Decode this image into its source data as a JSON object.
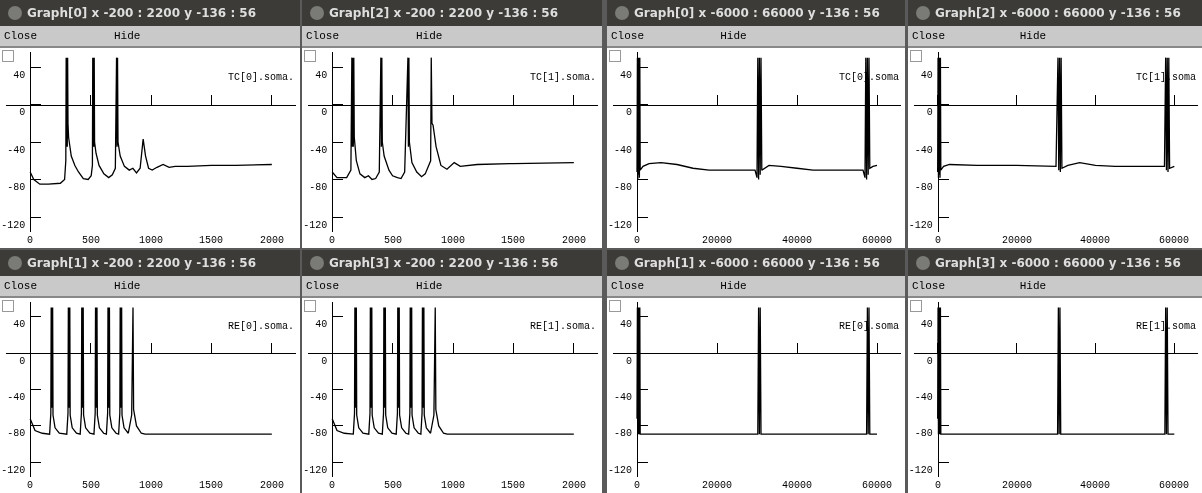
{
  "chart_data": [
    {
      "type": "line",
      "title": "Graph[0]  x -200 : 2200  y -136 : 56",
      "annotations": [
        "Close",
        "Hide"
      ],
      "xlim": [
        -200,
        2200
      ],
      "ylim": [
        -136,
        56
      ],
      "xticks": [
        0,
        500,
        1000,
        1500,
        2000
      ],
      "yticks": [
        -120,
        -80,
        -40,
        0,
        40
      ],
      "series": [
        {
          "name": "TC[0].soma.",
          "color": "#000000",
          "x": [
            0,
            30,
            80,
            150,
            250,
            285,
            295,
            298,
            301,
            304,
            307,
            310,
            313,
            318,
            340,
            370,
            400,
            440,
            480,
            505,
            515,
            518,
            521,
            524,
            527,
            530,
            533,
            545,
            570,
            610,
            650,
            680,
            705,
            715,
            719,
            723,
            727,
            745,
            780,
            820,
            850,
            880,
            910,
            935,
            955,
            980,
            1010,
            1050,
            1100,
            1150,
            1200,
            1300,
            1500,
            1700,
            2000
          ],
          "values": [
            -72,
            -80,
            -85,
            -85,
            -84,
            -80,
            -60,
            50,
            -45,
            50,
            -45,
            50,
            -20,
            -35,
            -55,
            -65,
            -72,
            -79,
            -80,
            -76,
            -65,
            50,
            -45,
            50,
            -45,
            50,
            -40,
            -52,
            -65,
            -74,
            -78,
            -75,
            -68,
            50,
            -45,
            50,
            -40,
            -55,
            -66,
            -70,
            -68,
            -73,
            -68,
            -37,
            -55,
            -68,
            -70,
            -67,
            -64,
            -67,
            -66,
            -66,
            -65,
            -65,
            -64
          ]
        }
      ]
    },
    {
      "type": "line",
      "title": "Graph[2]  x -200 : 2200  y -136 : 56",
      "annotations": [
        "Close",
        "Hide"
      ],
      "xlim": [
        -200,
        2200
      ],
      "ylim": [
        -136,
        56
      ],
      "xticks": [
        0,
        500,
        1000,
        1500,
        2000
      ],
      "yticks": [
        -120,
        -80,
        -40,
        0,
        40
      ],
      "series": [
        {
          "name": "TC[1].soma.",
          "color": "#000000",
          "x": [
            0,
            40,
            120,
            155,
            163,
            167,
            171,
            175,
            179,
            183,
            200,
            230,
            270,
            300,
            330,
            360,
            390,
            403,
            407,
            411,
            415,
            430,
            470,
            500,
            540,
            570,
            600,
            627,
            631,
            635,
            639,
            660,
            700,
            740,
            770,
            815,
            820,
            826,
            835,
            860,
            900,
            950,
            1010,
            1060,
            1200,
            1500,
            2000
          ],
          "values": [
            -72,
            -78,
            -78,
            -70,
            50,
            -45,
            50,
            -45,
            50,
            -35,
            -60,
            -74,
            -78,
            -76,
            -80,
            -79,
            -72,
            50,
            -45,
            50,
            -40,
            -55,
            -70,
            -76,
            -78,
            -79,
            -72,
            50,
            -45,
            50,
            -40,
            -62,
            -72,
            -77,
            -74,
            -60,
            50,
            -20,
            -22,
            -45,
            -65,
            -69,
            -62,
            -66,
            -64,
            -63,
            -62
          ]
        }
      ]
    },
    {
      "type": "line",
      "title": "Graph[0]  x -6000 : 66000  y -136 : 56",
      "annotations": [
        "Close",
        "Hide"
      ],
      "xlim": [
        -6000,
        66000
      ],
      "ylim": [
        -136,
        56
      ],
      "xticks": [
        0,
        20000,
        40000,
        60000
      ],
      "yticks": [
        -120,
        -80,
        -40,
        0,
        40
      ],
      "series": [
        {
          "name": "TC[0].soma",
          "color": "#000000",
          "x": [
            0,
            100,
            200,
            300,
            400,
            500,
            600,
            700,
            800,
            1500,
            3000,
            6000,
            10000,
            14000,
            18000,
            25000,
            29500,
            30000,
            30200,
            30400,
            30600,
            30800,
            31000,
            31200,
            33000,
            36000,
            40000,
            44000,
            50000,
            56500,
            57000,
            57200,
            57400,
            57600,
            57800,
            58000,
            58200,
            59000,
            60000
          ],
          "values": [
            -72,
            50,
            -80,
            50,
            -75,
            50,
            -78,
            50,
            -70,
            -66,
            -63,
            -62,
            -64,
            -68,
            -70,
            -70,
            -70,
            -78,
            50,
            -80,
            50,
            -75,
            50,
            -70,
            -65,
            -66,
            -68,
            -70,
            -70,
            -70,
            -78,
            50,
            -80,
            50,
            -75,
            50,
            -68,
            -66,
            -65
          ]
        }
      ]
    },
    {
      "type": "line",
      "title": "Graph[2]  x -6000 : 66000  y -136 : 56",
      "annotations": [
        "Close",
        "Hide"
      ],
      "xlim": [
        -6000,
        66000
      ],
      "ylim": [
        -136,
        56
      ],
      "xticks": [
        0,
        20000,
        40000,
        60000
      ],
      "yticks": [
        -120,
        -80,
        -40,
        0,
        40
      ],
      "series": [
        {
          "name": "TC[1].soma",
          "color": "#000000",
          "x": [
            0,
            100,
            200,
            300,
            400,
            500,
            600,
            700,
            800,
            1500,
            3000,
            10000,
            20000,
            30000,
            30500,
            30700,
            30900,
            31100,
            31300,
            31500,
            33000,
            36000,
            40000,
            45000,
            52000,
            57500,
            57800,
            58000,
            58200,
            58400,
            58600,
            58800,
            60000
          ],
          "values": [
            -72,
            50,
            -78,
            50,
            -75,
            50,
            -78,
            50,
            -70,
            -66,
            -64,
            -65,
            -65,
            -66,
            50,
            -70,
            50,
            -72,
            50,
            -68,
            -65,
            -62,
            -65,
            -66,
            -66,
            -66,
            50,
            -70,
            50,
            -72,
            50,
            -68,
            -66
          ]
        }
      ]
    },
    {
      "type": "line",
      "title": "Graph[1]  x -200 : 2200  y -136 : 56",
      "annotations": [
        "Close",
        "Hide"
      ],
      "xlim": [
        -200,
        2200
      ],
      "ylim": [
        -136,
        56
      ],
      "xticks": [
        0,
        500,
        1000,
        1500,
        2000
      ],
      "yticks": [
        -120,
        -80,
        -40,
        0,
        40
      ],
      "series": [
        {
          "name": "RE[0].soma.",
          "color": "#000000",
          "x": [
            0,
            40,
            100,
            161,
            171,
            174,
            177,
            180,
            183,
            186,
            189,
            206,
            241,
            303,
            313,
            316,
            319,
            322,
            325,
            328,
            331,
            348,
            383,
            414,
            424,
            427,
            430,
            433,
            436,
            439,
            442,
            459,
            494,
            528,
            538,
            541,
            544,
            547,
            550,
            553,
            556,
            573,
            608,
            631,
            641,
            644,
            647,
            650,
            653,
            656,
            659,
            676,
            711,
            732,
            742,
            745,
            748,
            751,
            754,
            757,
            760,
            777,
            812,
            840,
            851,
            856,
            880,
            920,
            950,
            2000
          ],
          "values": [
            -72,
            -85,
            -88,
            -89,
            -66,
            50,
            -60,
            50,
            -60,
            50,
            -68,
            -82,
            -88,
            -89,
            -66,
            50,
            -60,
            50,
            -60,
            50,
            -68,
            -82,
            -88,
            -89,
            -66,
            50,
            -60,
            50,
            -60,
            50,
            -68,
            -82,
            -88,
            -89,
            -66,
            50,
            -60,
            50,
            -60,
            50,
            -68,
            -82,
            -88,
            -89,
            -66,
            50,
            -60,
            50,
            -60,
            50,
            -68,
            -82,
            -88,
            -89,
            -66,
            50,
            -60,
            50,
            -60,
            50,
            -68,
            -82,
            -88,
            -68,
            50,
            -62,
            -80,
            -88,
            -89,
            -89
          ]
        }
      ]
    },
    {
      "type": "line",
      "title": "Graph[3]  x -200 : 2200  y -136 : 56",
      "annotations": [
        "Close",
        "Hide"
      ],
      "xlim": [
        -200,
        2200
      ],
      "ylim": [
        -136,
        56
      ],
      "xticks": [
        0,
        500,
        1000,
        1500,
        2000
      ],
      "yticks": [
        -120,
        -80,
        -40,
        0,
        40
      ],
      "series": [
        {
          "name": "RE[1].soma.",
          "color": "#000000",
          "x": [
            0,
            40,
            100,
            175,
            185,
            188,
            191,
            194,
            197,
            200,
            203,
            220,
            255,
            303,
            313,
            316,
            319,
            322,
            325,
            328,
            331,
            348,
            383,
            415,
            425,
            428,
            431,
            434,
            437,
            440,
            443,
            460,
            495,
            530,
            540,
            543,
            546,
            549,
            552,
            555,
            558,
            575,
            610,
            633,
            643,
            646,
            649,
            652,
            655,
            658,
            661,
            678,
            713,
            734,
            744,
            747,
            750,
            753,
            756,
            759,
            762,
            779,
            814,
            842,
            853,
            858,
            882,
            922,
            952,
            2000
          ],
          "values": [
            -72,
            -85,
            -88,
            -89,
            -66,
            50,
            -60,
            50,
            -60,
            50,
            -68,
            -82,
            -88,
            -89,
            -66,
            50,
            -60,
            50,
            -60,
            50,
            -68,
            -82,
            -88,
            -89,
            -66,
            50,
            -60,
            50,
            -60,
            50,
            -68,
            -82,
            -88,
            -89,
            -66,
            50,
            -60,
            50,
            -60,
            50,
            -68,
            -82,
            -88,
            -89,
            -66,
            50,
            -60,
            50,
            -60,
            50,
            -68,
            -82,
            -88,
            -89,
            -66,
            50,
            -60,
            50,
            -60,
            50,
            -68,
            -82,
            -88,
            -68,
            50,
            -62,
            -80,
            -88,
            -89,
            -89
          ]
        }
      ]
    },
    {
      "type": "line",
      "title": "Graph[1]  x -6000 : 66000  y -136 : 56",
      "annotations": [
        "Close",
        "Hide"
      ],
      "xlim": [
        -6000,
        66000
      ],
      "ylim": [
        -136,
        56
      ],
      "xticks": [
        0,
        20000,
        40000,
        60000
      ],
      "yticks": [
        -120,
        -80,
        -40,
        0,
        40
      ],
      "series": [
        {
          "name": "RE[0].soma",
          "color": "#000000",
          "x": [
            0,
            100,
            200,
            300,
            400,
            500,
            600,
            700,
            800,
            1200,
            10000,
            20000,
            30200,
            30400,
            30600,
            30800,
            31000,
            31200,
            40000,
            50000,
            57400,
            57600,
            57800,
            58000,
            58200,
            58400,
            60000
          ],
          "values": [
            -72,
            50,
            -89,
            50,
            -89,
            50,
            -89,
            50,
            -89,
            -89,
            -89,
            -89,
            -89,
            50,
            -89,
            50,
            -89,
            -89,
            -89,
            -89,
            -89,
            50,
            -89,
            50,
            -89,
            -89,
            -89
          ]
        }
      ]
    },
    {
      "type": "line",
      "title": "Graph[3]  x -6000 : 66000  y -136 : 56",
      "annotations": [
        "Close",
        "Hide"
      ],
      "xlim": [
        -6000,
        66000
      ],
      "ylim": [
        -136,
        56
      ],
      "xticks": [
        0,
        20000,
        40000,
        60000
      ],
      "yticks": [
        -120,
        -80,
        -40,
        0,
        40
      ],
      "series": [
        {
          "name": "RE[1].soma",
          "color": "#000000",
          "x": [
            0,
            100,
            200,
            300,
            400,
            500,
            600,
            700,
            800,
            1200,
            10000,
            20000,
            30400,
            30600,
            30800,
            31000,
            31200,
            31400,
            40000,
            50000,
            57600,
            57800,
            58000,
            58200,
            58400,
            58600,
            60000
          ],
          "values": [
            -72,
            50,
            -89,
            50,
            -89,
            50,
            -89,
            50,
            -89,
            -89,
            -89,
            -89,
            -89,
            50,
            -89,
            50,
            -89,
            -89,
            -89,
            -89,
            -89,
            50,
            -89,
            50,
            -89,
            -89,
            -89
          ]
        }
      ]
    }
  ]
}
